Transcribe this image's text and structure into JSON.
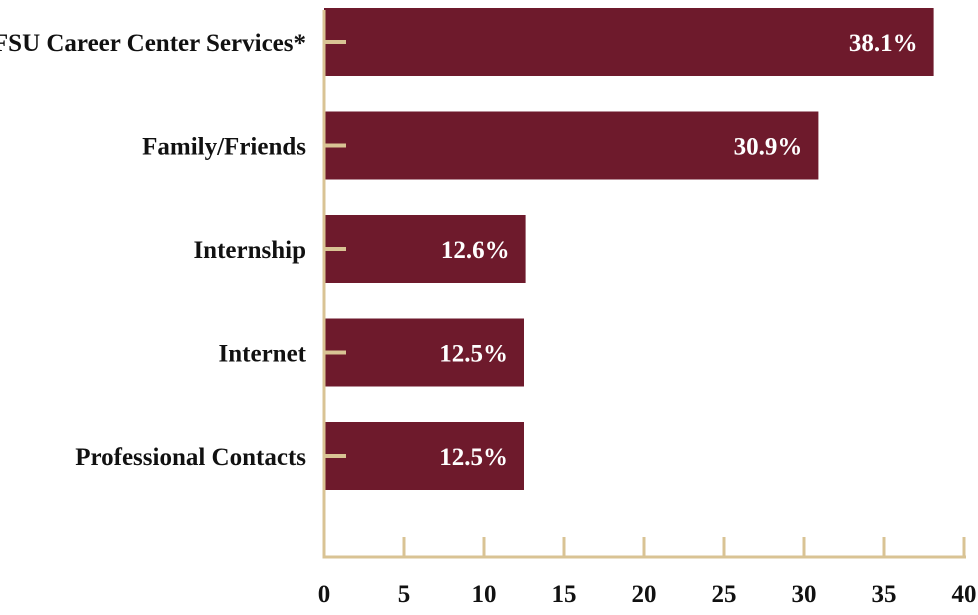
{
  "chart_data": {
    "type": "bar",
    "orientation": "horizontal",
    "categories": [
      "FSU Career Center Services*",
      "Family/Friends",
      "Internship",
      "Internet",
      "Professional Contacts"
    ],
    "values": [
      38.1,
      30.9,
      12.6,
      12.5,
      12.5
    ],
    "data_labels": [
      "38.1%",
      "30.9%",
      "12.6%",
      "12.5%",
      "12.5%"
    ],
    "title": "",
    "xlabel": "",
    "ylabel": "",
    "xlim": [
      0,
      40
    ],
    "x_ticks": [
      0,
      5,
      10,
      15,
      20,
      25,
      30,
      35,
      40
    ],
    "x_tick_labels": [
      "0",
      "5",
      "10",
      "15",
      "20",
      "25",
      "30",
      "35",
      "40"
    ],
    "grid": false,
    "legend": "none",
    "colors": {
      "bar": "#6e1a2c",
      "axis": "#d9c394",
      "text": "#111111",
      "value_text": "#ffffff"
    }
  }
}
